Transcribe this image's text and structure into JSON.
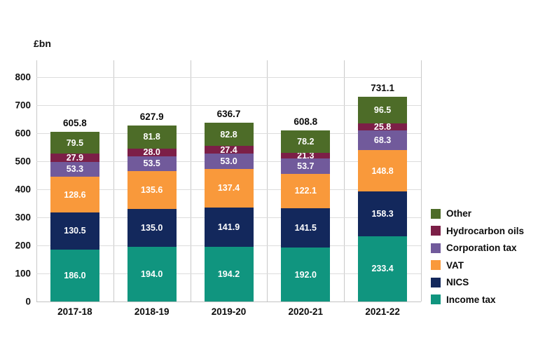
{
  "chart_data": {
    "type": "bar",
    "stacked": true,
    "title": "",
    "ylabel": "£bn",
    "xlabel": "",
    "ylim": [
      0,
      800
    ],
    "ytick_step": 100,
    "grid": true,
    "legend_position": "right",
    "categories": [
      "2017-18",
      "2018-19",
      "2019-20",
      "2020-21",
      "2021-22"
    ],
    "series": [
      {
        "name": "Income tax",
        "color": "#10957f",
        "values": [
          186.0,
          194.0,
          194.2,
          192.0,
          233.4
        ]
      },
      {
        "name": "NICS",
        "color": "#13285c",
        "values": [
          130.5,
          135.0,
          141.9,
          141.5,
          158.3
        ]
      },
      {
        "name": "VAT",
        "color": "#f9993b",
        "values": [
          128.6,
          135.6,
          137.4,
          122.1,
          148.8
        ]
      },
      {
        "name": "Corporation tax",
        "color": "#715a9b",
        "values": [
          53.3,
          53.5,
          53.0,
          53.7,
          68.3
        ]
      },
      {
        "name": "Hydrocarbon oils",
        "color": "#7c1f47",
        "values": [
          27.9,
          28.0,
          27.4,
          21.3,
          25.8
        ]
      },
      {
        "name": "Other",
        "color": "#4d6c28",
        "values": [
          79.5,
          81.8,
          82.8,
          78.2,
          96.5
        ]
      }
    ],
    "totals": [
      605.8,
      627.9,
      636.7,
      608.8,
      731.1
    ],
    "legend_order": [
      "Other",
      "Hydrocarbon oils",
      "Corporation tax",
      "VAT",
      "NICS",
      "Income tax"
    ]
  },
  "colors": {
    "grid_horizontal": "#dcdcdc",
    "grid_vertical": "#c9c9c9",
    "axis": "#c2c2c2",
    "text": "#0b0b0b",
    "value_label": "#ffffff",
    "background": "#ffffff"
  }
}
